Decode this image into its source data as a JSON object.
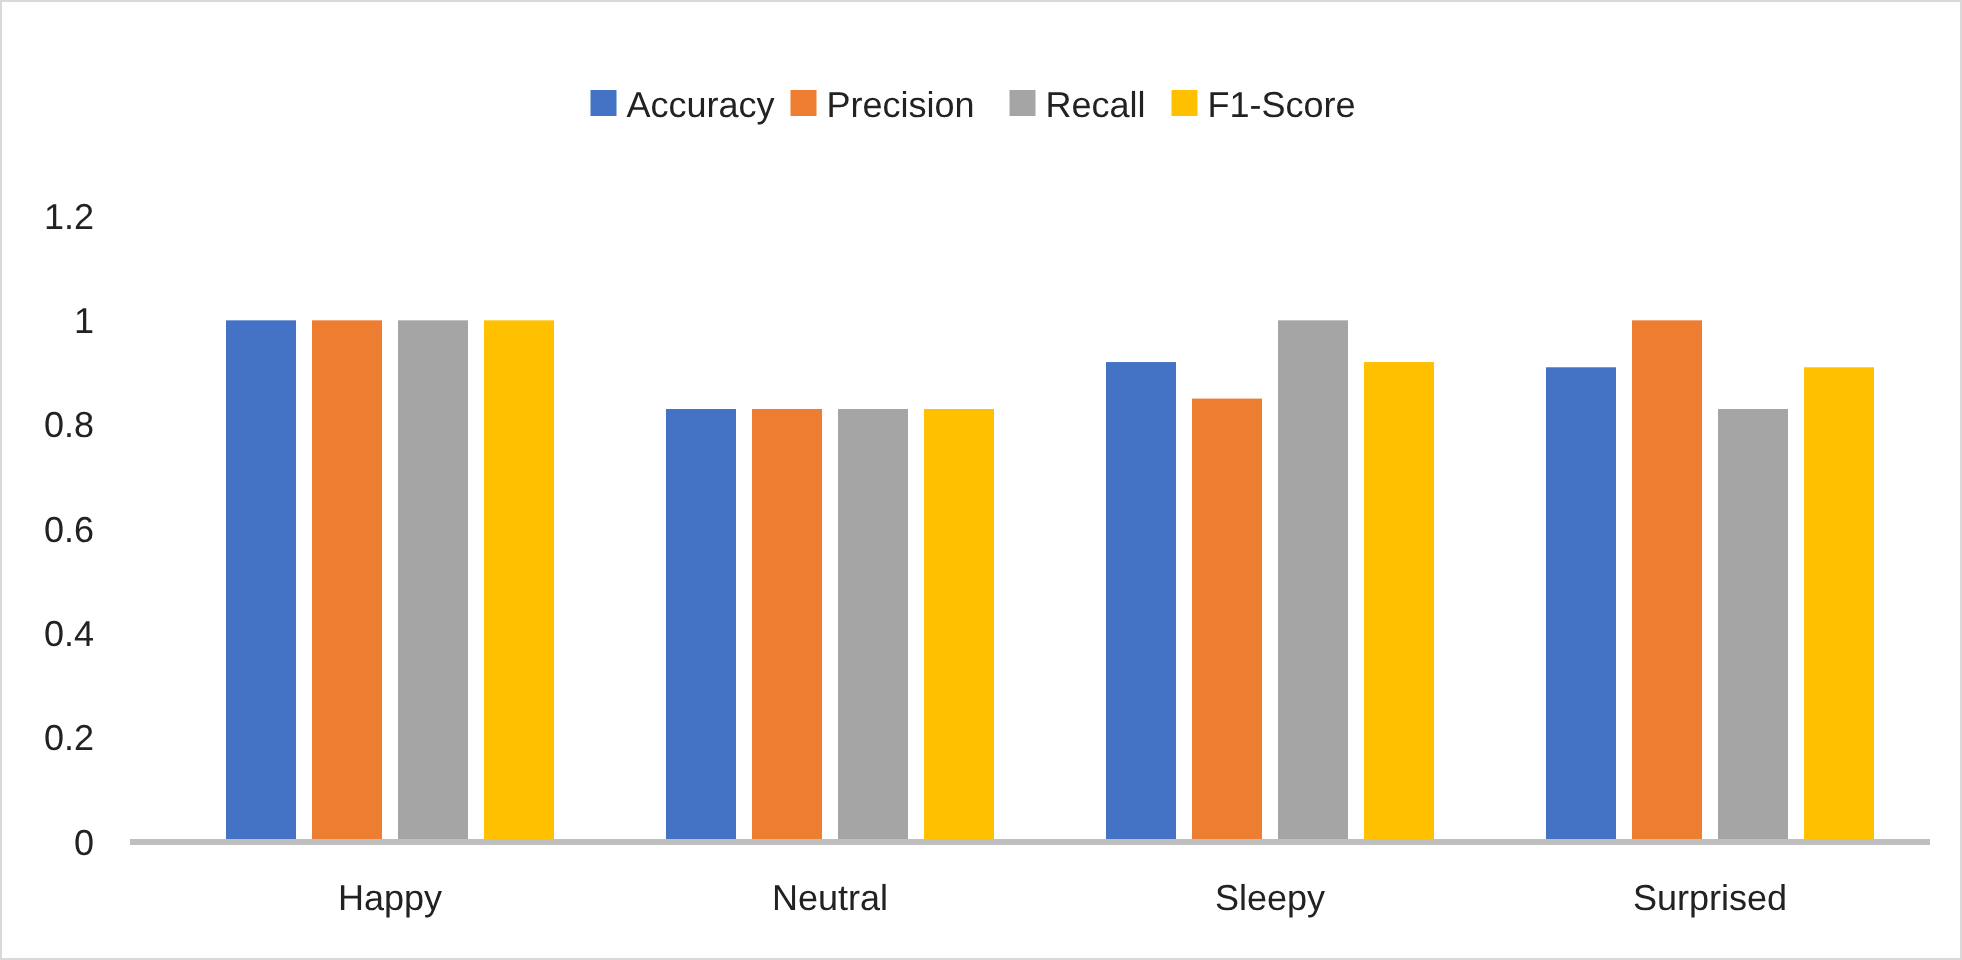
{
  "chart_data": {
    "type": "bar",
    "categories": [
      "Happy",
      "Neutral",
      "Sleepy",
      "Surprised"
    ],
    "series": [
      {
        "name": "Accuracy",
        "color": "#4472c4",
        "values": [
          1,
          0.83,
          0.92,
          0.91
        ]
      },
      {
        "name": "Precision",
        "color": "#ed7d31",
        "values": [
          1,
          0.83,
          0.85,
          1
        ]
      },
      {
        "name": "Recall",
        "color": "#a5a5a5",
        "values": [
          1,
          0.83,
          1,
          0.83
        ]
      },
      {
        "name": "F1-Score",
        "color": "#ffc000",
        "values": [
          1,
          0.83,
          0.92,
          0.91
        ]
      }
    ],
    "ylim": [
      0,
      1.2
    ],
    "yticks": [
      0,
      0.2,
      0.4,
      0.6,
      0.8,
      1,
      1.2
    ],
    "grid": false,
    "legend": "top"
  }
}
